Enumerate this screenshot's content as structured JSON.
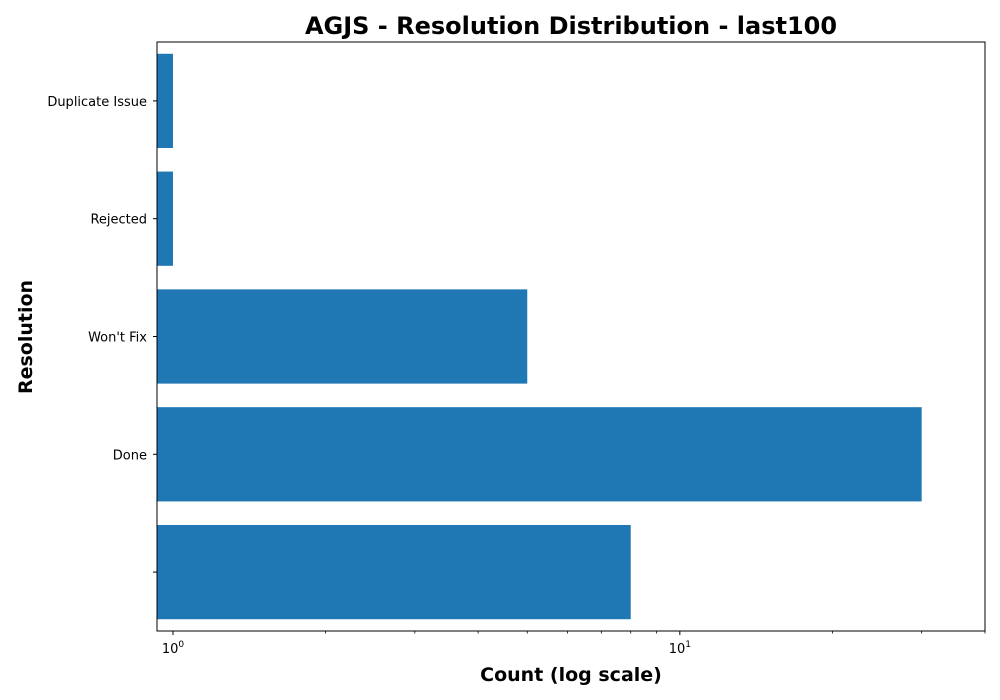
{
  "chart_data": {
    "type": "bar",
    "orientation": "horizontal",
    "title": "AGJS - Resolution Distribution - last100",
    "xlabel": "Count (log scale)",
    "ylabel": "Resolution",
    "x_scale": "log",
    "xlim": [
      0.93,
      40
    ],
    "x_ticks": [
      {
        "value": 1,
        "base": "10",
        "exp": "0"
      },
      {
        "value": 10,
        "base": "10",
        "exp": "1"
      }
    ],
    "categories": [
      "",
      "Done",
      "Won't Fix",
      "Rejected",
      "Duplicate Issue"
    ],
    "values": [
      8,
      30,
      5,
      1,
      1
    ],
    "bar_color": "#1f77b4",
    "grid": false,
    "legend": "none"
  }
}
